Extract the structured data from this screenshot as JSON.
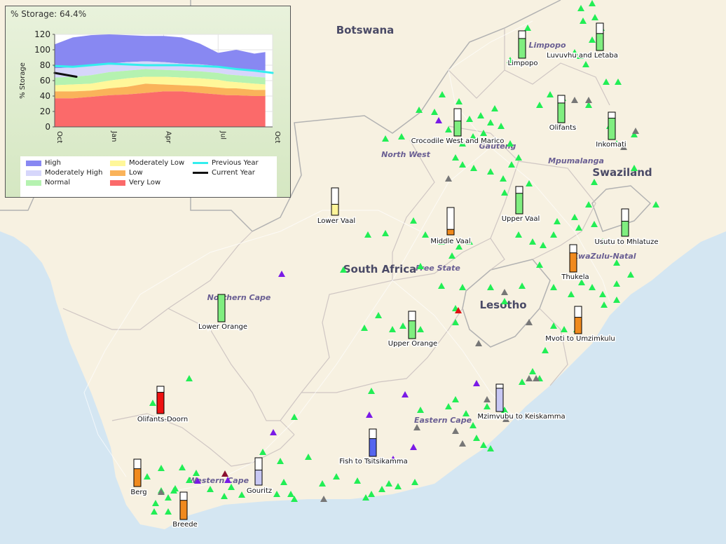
{
  "map": {
    "country_labels": [
      {
        "text": "Botswana",
        "kind": "country",
        "colour": "#4a4a66"
      },
      {
        "text": "South Africa",
        "kind": "country",
        "colour": "#4a4a66"
      },
      {
        "text": "Lesotho",
        "kind": "country",
        "colour": "#4a4a66"
      },
      {
        "text": "Swaziland",
        "kind": "country",
        "colour": "#4a4a66"
      }
    ],
    "province_labels": [
      {
        "text": "Limpopo"
      },
      {
        "text": "North West"
      },
      {
        "text": "Gauteng"
      },
      {
        "text": "Mpumalanga"
      },
      {
        "text": "Free State"
      },
      {
        "text": "KwaZulu-Natal"
      },
      {
        "text": "Northern Cape"
      },
      {
        "text": "Eastern Cape"
      },
      {
        "text": "Western Cape"
      }
    ],
    "water_management_areas": [
      {
        "name": "Limpopo",
        "storage_fraction": 0.72,
        "fill": "#80ee80"
      },
      {
        "name": "Luvuvhu and Letaba",
        "storage_fraction": 0.62,
        "fill": "#80ee80"
      },
      {
        "name": "Olifants",
        "storage_fraction": 0.72,
        "fill": "#80ee80"
      },
      {
        "name": "Inkomati",
        "storage_fraction": 0.78,
        "fill": "#80ee80"
      },
      {
        "name": "Crocodile West and Marico",
        "storage_fraction": 0.55,
        "fill": "#80ee80"
      },
      {
        "name": "Lower Vaal",
        "storage_fraction": 0.4,
        "fill": "#fff59a"
      },
      {
        "name": "Middle Vaal",
        "storage_fraction": 0.2,
        "fill": "#f08a1e"
      },
      {
        "name": "Upper Vaal",
        "storage_fraction": 0.75,
        "fill": "#80ee80"
      },
      {
        "name": "Usutu to Mhlatuze",
        "storage_fraction": 0.55,
        "fill": "#80ee80"
      },
      {
        "name": "Thukela",
        "storage_fraction": 0.7,
        "fill": "#f08a1e"
      },
      {
        "name": "Mvoti to Umzimkulu",
        "storage_fraction": 0.6,
        "fill": "#f08a1e"
      },
      {
        "name": "Lower Orange",
        "storage_fraction": 1.0,
        "fill": "#80ee80"
      },
      {
        "name": "Upper Orange",
        "storage_fraction": 0.65,
        "fill": "#80ee80"
      },
      {
        "name": "Mzimvubu to Keiskamma",
        "storage_fraction": 0.85,
        "fill": "#c8c8f4"
      },
      {
        "name": "Olifants-Doorn",
        "storage_fraction": 0.78,
        "fill": "#ee1111"
      },
      {
        "name": "Fish to Tsitsikamma",
        "storage_fraction": 0.65,
        "fill": "#5566ee"
      },
      {
        "name": "Gouritz",
        "storage_fraction": 0.55,
        "fill": "#c8c8f4"
      },
      {
        "name": "Berg",
        "storage_fraction": 0.65,
        "fill": "#f08a1e"
      },
      {
        "name": "Breede",
        "storage_fraction": 0.7,
        "fill": "#f08a1e"
      }
    ],
    "marker_colours": {
      "normal": "#22ee55",
      "no_data": "#777777",
      "high": "#7a1ae6",
      "very_low": "#dd1111",
      "critical": "#8a1030"
    }
  },
  "inset": {
    "title": "% Storage: 64.4%",
    "legend": [
      {
        "label": "High",
        "colour": "#8888f2",
        "kind": "swatch"
      },
      {
        "label": "Moderately High",
        "colour": "#d6d6fb",
        "kind": "swatch"
      },
      {
        "label": "Normal",
        "colour": "#b5f2b0",
        "kind": "swatch"
      },
      {
        "label": "Moderately Low",
        "colour": "#fff79a",
        "kind": "swatch"
      },
      {
        "label": "Low",
        "colour": "#fab35a",
        "kind": "swatch"
      },
      {
        "label": "Very Low",
        "colour": "#fb6a6a",
        "kind": "swatch"
      },
      {
        "label": "Previous Year",
        "colour": "#33eeee",
        "kind": "line"
      },
      {
        "label": "Current Year",
        "colour": "#111111",
        "kind": "line"
      }
    ]
  },
  "chart_data": {
    "type": "area",
    "ylabel": "% Storage",
    "ylim": [
      0,
      120
    ],
    "yticks": [
      0,
      20,
      40,
      60,
      80,
      100,
      120
    ],
    "xlim": [
      0,
      12
    ],
    "xticks": [
      {
        "label": "Oct",
        "month": 0
      },
      {
        "label": "Jan",
        "month": 3
      },
      {
        "label": "Apr",
        "month": 6
      },
      {
        "label": "Jul",
        "month": 9
      },
      {
        "label": "Oct",
        "month": 12
      }
    ],
    "x": [
      0,
      1,
      2,
      3,
      4,
      5,
      6,
      7,
      8,
      9,
      9.5,
      10,
      11,
      11.6
    ],
    "bands_upper": {
      "Very Low": [
        37,
        37,
        39,
        41,
        42,
        44,
        46,
        46,
        44,
        42,
        41,
        41,
        40,
        40
      ],
      "Low": [
        46,
        46,
        47,
        50,
        52,
        56,
        55,
        54,
        53,
        51,
        50,
        50,
        48,
        48
      ],
      "Moderately Low": [
        54,
        55,
        56,
        60,
        63,
        65,
        65,
        64,
        63,
        61,
        59,
        58,
        56,
        55
      ],
      "Normal": [
        64,
        65,
        67,
        71,
        73,
        75,
        74,
        73,
        72,
        70,
        68,
        67,
        65,
        64
      ],
      "Moderately High": [
        76,
        77,
        79,
        82,
        84,
        85,
        84,
        82,
        81,
        79,
        77,
        76,
        74,
        73
      ],
      "High": [
        107,
        116,
        119,
        120,
        119,
        118,
        118,
        116,
        108,
        96,
        98,
        100,
        95,
        97
      ]
    },
    "series": [
      {
        "name": "Previous Year",
        "x": [
          0,
          1,
          2,
          3,
          4,
          5,
          6,
          7,
          8,
          9,
          10,
          11,
          12
        ],
        "values": [
          79,
          78,
          80,
          82,
          81,
          80,
          80,
          80,
          79,
          78,
          75,
          73,
          70
        ]
      },
      {
        "name": "Current Year",
        "x": [
          0,
          1.2
        ],
        "values": [
          70,
          65
        ]
      }
    ]
  }
}
